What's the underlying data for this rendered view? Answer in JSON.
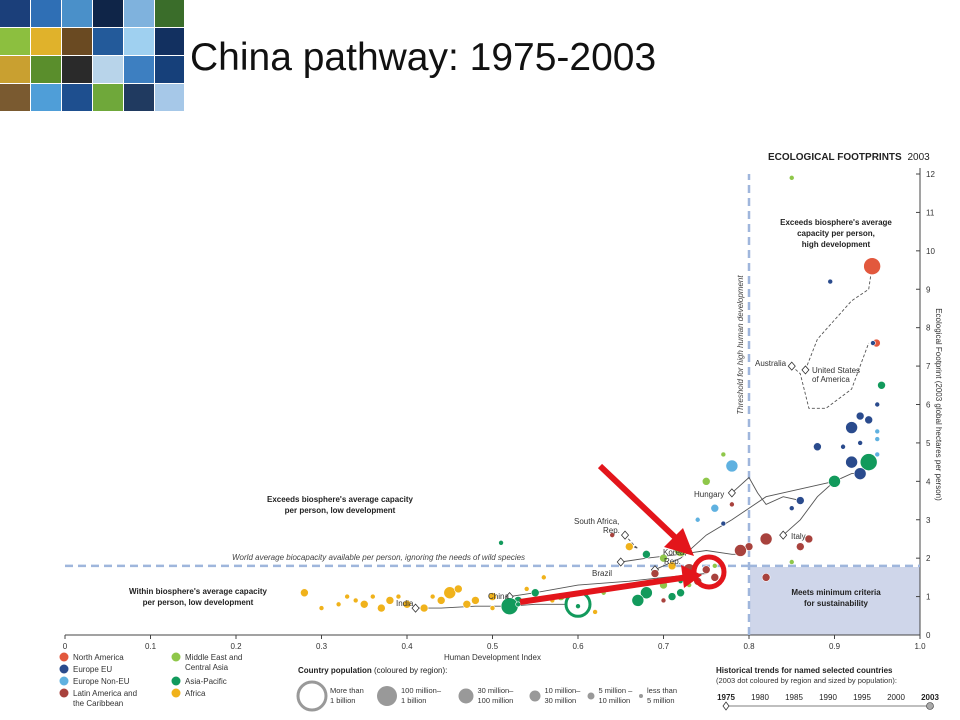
{
  "slide": {
    "title": "China pathway: 1975-2003"
  },
  "chart_data": {
    "type": "scatter",
    "title": "ECOLOGICAL FOOTPRINTS",
    "title_year": "2003",
    "xlabel": "Human Development Index",
    "ylabel": "Ecological Footprint (2003 global hectares per person)",
    "xlim": [
      0,
      1
    ],
    "ylim": [
      0,
      12
    ],
    "x_ticks": [
      "0",
      "0.1",
      "0.2",
      "0.3",
      "0.4",
      "0.5",
      "0.6",
      "0.7",
      "0.8",
      "0.9",
      "1.0"
    ],
    "y_ticks": [
      "0",
      "1",
      "2",
      "3",
      "4",
      "5",
      "6",
      "7",
      "8",
      "9",
      "10",
      "11",
      "12"
    ],
    "threshold_label": "Threshold for high human development",
    "threshold_x": 0.8,
    "biocapacity_label": "World average biocapacity available per person, ignoring the needs of wild species",
    "biocapacity_y": 1.8,
    "annotations": {
      "top_right": [
        "Exceeds biosphere's average",
        "capacity per person,",
        "high development"
      ],
      "middle_left": [
        "Exceeds biosphere's average capacity",
        "per person, low development"
      ],
      "bottom_left": [
        "Within biosphere's average capacity",
        "per person, low development"
      ],
      "bottom_right": [
        "Meets minimum criteria",
        "for sustainability"
      ]
    },
    "regions": [
      {
        "name": "North America",
        "color": "#e2583d"
      },
      {
        "name": "Europe EU",
        "color": "#2a4b8d"
      },
      {
        "name": "Europe Non-EU",
        "color": "#5fb1e0"
      },
      {
        "name": "Latin America and the Caribbean",
        "color": "#a8423d"
      },
      {
        "name": "Middle East and Central Asia",
        "color": "#8fc74a"
      },
      {
        "name": "Asia-Pacific",
        "color": "#129a5c"
      },
      {
        "name": "Africa",
        "color": "#f0b21b"
      }
    ],
    "legend_regions": [
      {
        "lines": [
          "North America"
        ],
        "color": "#e2583d"
      },
      {
        "lines": [
          "Europe EU"
        ],
        "color": "#2a4b8d"
      },
      {
        "lines": [
          "Europe Non-EU"
        ],
        "color": "#5fb1e0"
      },
      {
        "lines": [
          "Latin America and",
          "the Caribbean"
        ],
        "color": "#a8423d"
      },
      {
        "lines": [
          "Middle East and",
          "Central Asia"
        ],
        "color": "#8fc74a"
      },
      {
        "lines": [
          "Asia-Pacific"
        ],
        "color": "#129a5c"
      },
      {
        "lines": [
          "Africa"
        ],
        "color": "#f0b21b"
      }
    ],
    "population_legend": {
      "title": "Country population",
      "subtitle": " (coloured by region):",
      "sizes": [
        {
          "lines": [
            "More than",
            "1 billion"
          ],
          "hollow": true
        },
        {
          "lines": [
            "100 million–",
            "1 billion"
          ]
        },
        {
          "lines": [
            "30 million–",
            "100 million"
          ]
        },
        {
          "lines": [
            "10 million–",
            "30 million"
          ]
        },
        {
          "lines": [
            "5 million –",
            "10 million"
          ]
        },
        {
          "lines": [
            "less than",
            "5 million"
          ]
        }
      ]
    },
    "history_legend": {
      "title": "Historical trends for named selected countries",
      "subtitle": "(2003 dot coloured by region and sized by population):",
      "years": [
        "1975",
        "1980",
        "1985",
        "1990",
        "1995",
        "2000",
        "2003"
      ]
    },
    "named_countries": [
      {
        "name": "Australia",
        "path": [
          [
            0.85,
            7.0
          ],
          [
            0.86,
            6.8
          ],
          [
            0.87,
            5.9
          ],
          [
            0.89,
            5.9
          ],
          [
            0.92,
            6.4
          ],
          [
            0.94,
            7.6
          ]
        ],
        "color": "#8fc74a"
      },
      {
        "name": "United States of America",
        "path": [
          [
            0.866,
            6.9
          ],
          [
            0.88,
            7.7
          ],
          [
            0.9,
            8.2
          ],
          [
            0.92,
            8.7
          ],
          [
            0.94,
            9.0
          ],
          [
            0.944,
            9.6
          ]
        ],
        "color": "#e2583d"
      },
      {
        "name": "Hungary",
        "path": [
          [
            0.78,
            3.7
          ],
          [
            0.8,
            4.1
          ],
          [
            0.81,
            3.7
          ],
          [
            0.82,
            3.4
          ],
          [
            0.84,
            3.6
          ],
          [
            0.86,
            3.5
          ]
        ],
        "color": "#2a4b8d"
      },
      {
        "name": "Italy",
        "path": [
          [
            0.84,
            2.6
          ],
          [
            0.86,
            3.0
          ],
          [
            0.88,
            3.6
          ],
          [
            0.9,
            4.0
          ],
          [
            0.92,
            4.2
          ],
          [
            0.93,
            4.2
          ]
        ],
        "color": "#2a4b8d"
      },
      {
        "name": "South Africa, Rep.",
        "path": [
          [
            0.655,
            2.6
          ],
          [
            0.665,
            2.35
          ],
          [
            0.67,
            2.25
          ],
          [
            0.665,
            2.3
          ]
        ],
        "color": "#f0b21b"
      },
      {
        "name": "Korea, Rep.",
        "path": [
          [
            0.69,
            1.7
          ],
          [
            0.72,
            2.0
          ],
          [
            0.75,
            2.6
          ],
          [
            0.78,
            3.0
          ],
          [
            0.82,
            3.6
          ],
          [
            0.9,
            4.0
          ]
        ],
        "color": "#129a5c"
      },
      {
        "name": "Brazil",
        "path": [
          [
            0.65,
            1.9
          ],
          [
            0.68,
            2.0
          ],
          [
            0.72,
            2.1
          ],
          [
            0.75,
            2.2
          ],
          [
            0.78,
            2.1
          ],
          [
            0.79,
            2.1
          ]
        ],
        "color": "#a8423d"
      },
      {
        "name": "India",
        "path": [
          [
            0.41,
            0.7
          ],
          [
            0.44,
            0.7
          ],
          [
            0.48,
            0.75
          ],
          [
            0.52,
            0.75
          ],
          [
            0.55,
            0.8
          ],
          [
            0.6,
            0.8
          ]
        ],
        "color": "#f0b21b"
      },
      {
        "name": "China",
        "path": [
          [
            0.52,
            1.0
          ],
          [
            0.55,
            1.1
          ],
          [
            0.6,
            1.3
          ],
          [
            0.66,
            1.4
          ],
          [
            0.7,
            1.5
          ],
          [
            0.75,
            1.6
          ]
        ],
        "color": "#129a5c"
      }
    ],
    "points": [
      {
        "x": 0.944,
        "y": 9.6,
        "c": "North America",
        "s": 4
      },
      {
        "x": 0.949,
        "y": 7.6,
        "c": "North America",
        "s": 2
      },
      {
        "x": 0.945,
        "y": 7.6,
        "c": "Europe EU",
        "s": 1
      },
      {
        "x": 0.955,
        "y": 6.5,
        "c": "Asia-Pacific",
        "s": 2
      },
      {
        "x": 0.95,
        "y": 6.0,
        "c": "Europe EU",
        "s": 1
      },
      {
        "x": 0.93,
        "y": 5.7,
        "c": "Europe EU",
        "s": 2
      },
      {
        "x": 0.94,
        "y": 5.6,
        "c": "Europe EU",
        "s": 2
      },
      {
        "x": 0.92,
        "y": 5.4,
        "c": "Europe EU",
        "s": 3
      },
      {
        "x": 0.95,
        "y": 5.3,
        "c": "Europe Non-EU",
        "s": 1
      },
      {
        "x": 0.93,
        "y": 5.0,
        "c": "Europe EU",
        "s": 1
      },
      {
        "x": 0.95,
        "y": 5.1,
        "c": "Europe Non-EU",
        "s": 1
      },
      {
        "x": 0.91,
        "y": 4.9,
        "c": "Europe EU",
        "s": 1
      },
      {
        "x": 0.94,
        "y": 4.5,
        "c": "Asia-Pacific",
        "s": 4
      },
      {
        "x": 0.92,
        "y": 4.5,
        "c": "Europe EU",
        "s": 3
      },
      {
        "x": 0.93,
        "y": 4.2,
        "c": "Europe EU",
        "s": 3
      },
      {
        "x": 0.9,
        "y": 4.0,
        "c": "Asia-Pacific",
        "s": 3
      },
      {
        "x": 0.95,
        "y": 4.7,
        "c": "Europe Non-EU",
        "s": 1
      },
      {
        "x": 0.88,
        "y": 4.9,
        "c": "Europe EU",
        "s": 2
      },
      {
        "x": 0.86,
        "y": 3.5,
        "c": "Europe EU",
        "s": 2
      },
      {
        "x": 0.85,
        "y": 3.3,
        "c": "Europe EU",
        "s": 1
      },
      {
        "x": 0.87,
        "y": 2.5,
        "c": "Latin America and the Caribbean",
        "s": 2
      },
      {
        "x": 0.86,
        "y": 2.3,
        "c": "Latin America and the Caribbean",
        "s": 2
      },
      {
        "x": 0.82,
        "y": 2.5,
        "c": "Latin America and the Caribbean",
        "s": 3
      },
      {
        "x": 0.8,
        "y": 2.3,
        "c": "Latin America and the Caribbean",
        "s": 2
      },
      {
        "x": 0.79,
        "y": 2.2,
        "c": "Latin America and the Caribbean",
        "s": 3
      },
      {
        "x": 0.78,
        "y": 4.4,
        "c": "Europe Non-EU",
        "s": 3
      },
      {
        "x": 0.77,
        "y": 4.7,
        "c": "Middle East and Central Asia",
        "s": 1
      },
      {
        "x": 0.75,
        "y": 4.0,
        "c": "Middle East and Central Asia",
        "s": 2
      },
      {
        "x": 0.76,
        "y": 3.3,
        "c": "Europe Non-EU",
        "s": 2
      },
      {
        "x": 0.78,
        "y": 3.4,
        "c": "Latin America and the Caribbean",
        "s": 1
      },
      {
        "x": 0.77,
        "y": 2.9,
        "c": "Europe EU",
        "s": 1
      },
      {
        "x": 0.74,
        "y": 3.0,
        "c": "Europe Non-EU",
        "s": 1
      },
      {
        "x": 0.72,
        "y": 2.2,
        "c": "Middle East and Central Asia",
        "s": 3
      },
      {
        "x": 0.7,
        "y": 2.0,
        "c": "Middle East and Central Asia",
        "s": 2
      },
      {
        "x": 0.71,
        "y": 1.8,
        "c": "Africa",
        "s": 2
      },
      {
        "x": 0.66,
        "y": 2.3,
        "c": "Africa",
        "s": 2
      },
      {
        "x": 0.64,
        "y": 2.6,
        "c": "Latin America and the Caribbean",
        "s": 1
      },
      {
        "x": 0.68,
        "y": 2.1,
        "c": "Asia-Pacific",
        "s": 2
      },
      {
        "x": 0.73,
        "y": 1.7,
        "c": "Latin America and the Caribbean",
        "s": 3
      },
      {
        "x": 0.75,
        "y": 1.7,
        "c": "Latin America and the Caribbean",
        "s": 2
      },
      {
        "x": 0.76,
        "y": 1.5,
        "c": "Latin America and the Caribbean",
        "s": 2
      },
      {
        "x": 0.74,
        "y": 1.4,
        "c": "Latin America and the Caribbean",
        "s": 2
      },
      {
        "x": 0.69,
        "y": 1.6,
        "c": "Latin America and the Caribbean",
        "s": 2
      },
      {
        "x": 0.7,
        "y": 1.3,
        "c": "Middle East and Central Asia",
        "s": 2
      },
      {
        "x": 0.72,
        "y": 1.1,
        "c": "Asia-Pacific",
        "s": 2
      },
      {
        "x": 0.68,
        "y": 1.1,
        "c": "Asia-Pacific",
        "s": 3
      },
      {
        "x": 0.71,
        "y": 1.0,
        "c": "Asia-Pacific",
        "s": 2
      },
      {
        "x": 0.7,
        "y": 0.9,
        "c": "Latin America and the Caribbean",
        "s": 1
      },
      {
        "x": 0.67,
        "y": 0.9,
        "c": "Asia-Pacific",
        "s": 3
      },
      {
        "x": 0.63,
        "y": 1.1,
        "c": "Middle East and Central Asia",
        "s": 1
      },
      {
        "x": 0.61,
        "y": 0.9,
        "c": "Middle East and Central Asia",
        "s": 1
      },
      {
        "x": 0.6,
        "y": 0.8,
        "c": "Asia-Pacific",
        "s": 5
      },
      {
        "x": 0.58,
        "y": 1.0,
        "c": "Middle East and Central Asia",
        "s": 2
      },
      {
        "x": 0.55,
        "y": 1.1,
        "c": "Asia-Pacific",
        "s": 2
      },
      {
        "x": 0.53,
        "y": 0.9,
        "c": "Asia-Pacific",
        "s": 2
      },
      {
        "x": 0.52,
        "y": 0.75,
        "c": "Asia-Pacific",
        "s": 4
      },
      {
        "x": 0.5,
        "y": 1.0,
        "c": "Africa",
        "s": 2
      },
      {
        "x": 0.48,
        "y": 0.9,
        "c": "Africa",
        "s": 2
      },
      {
        "x": 0.47,
        "y": 0.8,
        "c": "Africa",
        "s": 2
      },
      {
        "x": 0.45,
        "y": 1.1,
        "c": "Africa",
        "s": 3
      },
      {
        "x": 0.44,
        "y": 0.9,
        "c": "Africa",
        "s": 2
      },
      {
        "x": 0.42,
        "y": 0.7,
        "c": "Africa",
        "s": 2
      },
      {
        "x": 0.4,
        "y": 0.8,
        "c": "Africa",
        "s": 2
      },
      {
        "x": 0.38,
        "y": 0.9,
        "c": "Africa",
        "s": 2
      },
      {
        "x": 0.37,
        "y": 0.7,
        "c": "Africa",
        "s": 2
      },
      {
        "x": 0.36,
        "y": 1.0,
        "c": "Africa",
        "s": 1
      },
      {
        "x": 0.34,
        "y": 0.9,
        "c": "Africa",
        "s": 1
      },
      {
        "x": 0.33,
        "y": 1.0,
        "c": "Africa",
        "s": 1
      },
      {
        "x": 0.32,
        "y": 0.8,
        "c": "Africa",
        "s": 1
      },
      {
        "x": 0.3,
        "y": 0.7,
        "c": "Africa",
        "s": 1
      },
      {
        "x": 0.28,
        "y": 1.1,
        "c": "Africa",
        "s": 2
      },
      {
        "x": 0.35,
        "y": 0.8,
        "c": "Africa",
        "s": 2
      },
      {
        "x": 0.39,
        "y": 1.0,
        "c": "Africa",
        "s": 1
      },
      {
        "x": 0.43,
        "y": 1.0,
        "c": "Africa",
        "s": 1
      },
      {
        "x": 0.46,
        "y": 1.2,
        "c": "Africa",
        "s": 2
      },
      {
        "x": 0.5,
        "y": 0.7,
        "c": "Africa",
        "s": 1
      },
      {
        "x": 0.56,
        "y": 1.5,
        "c": "Africa",
        "s": 1
      },
      {
        "x": 0.54,
        "y": 1.2,
        "c": "Africa",
        "s": 1
      },
      {
        "x": 0.57,
        "y": 0.9,
        "c": "Africa",
        "s": 1
      },
      {
        "x": 0.53,
        "y": 0.8,
        "c": "Asia-Pacific",
        "s": 1
      },
      {
        "x": 0.51,
        "y": 2.4,
        "c": "Asia-Pacific",
        "s": 1
      },
      {
        "x": 0.62,
        "y": 0.6,
        "c": "Africa",
        "s": 1
      },
      {
        "x": 0.6,
        "y": 0.75,
        "c": "Asia-Pacific",
        "s": 1
      },
      {
        "x": 0.82,
        "y": 1.5,
        "c": "Latin America and the Caribbean",
        "s": 2
      },
      {
        "x": 0.85,
        "y": 1.9,
        "c": "Middle East and Central Asia",
        "s": 1
      },
      {
        "x": 0.85,
        "y": 11.9,
        "c": "Middle East and Central Asia",
        "s": 1
      },
      {
        "x": 0.895,
        "y": 9.2,
        "c": "Europe EU",
        "s": 1
      },
      {
        "x": 0.76,
        "y": 1.8,
        "c": "Middle East and Central Asia",
        "s": 1
      },
      {
        "x": 0.73,
        "y": 1.3,
        "c": "Middle East and Central Asia",
        "s": 1
      },
      {
        "x": 0.72,
        "y": 1.4,
        "c": "Asia-Pacific",
        "s": 1
      }
    ]
  }
}
